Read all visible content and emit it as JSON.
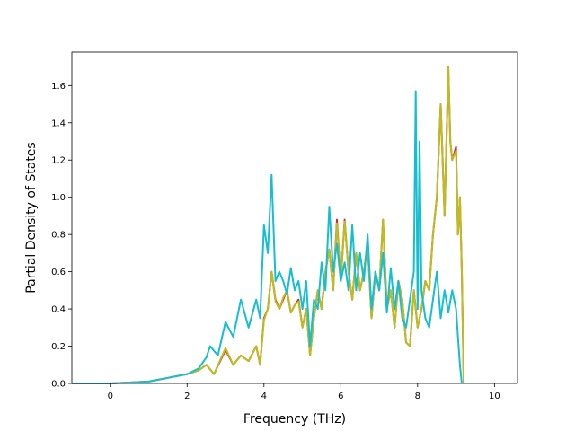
{
  "chart_data": {
    "type": "line",
    "title": "",
    "xlabel": "Frequency (THz)",
    "ylabel": "Partial Density of States",
    "xlim": [
      -1.0,
      10.6
    ],
    "ylim": [
      0.0,
      1.78
    ],
    "xticks": [
      0,
      2,
      4,
      6,
      8,
      10
    ],
    "yticks": [
      0.0,
      0.2,
      0.4,
      0.6,
      0.8,
      1.0,
      1.2,
      1.4,
      1.6
    ],
    "xtick_labels": [
      "0",
      "2",
      "4",
      "6",
      "8",
      "10"
    ],
    "ytick_labels": [
      "0.0",
      "0.2",
      "0.4",
      "0.6",
      "0.8",
      "1.0",
      "1.2",
      "1.4",
      "1.6"
    ],
    "grid": false,
    "legend": "none",
    "series": [
      {
        "color": "#d62728",
        "x": [
          -1.0,
          0.0,
          0.5,
          1.0,
          1.5,
          2.0,
          2.3,
          2.5,
          2.7,
          3.0,
          3.2,
          3.4,
          3.6,
          3.8,
          3.9,
          4.0,
          4.1,
          4.2,
          4.3,
          4.4,
          4.5,
          4.6,
          4.7,
          4.8,
          4.9,
          5.0,
          5.1,
          5.2,
          5.3,
          5.4,
          5.5,
          5.6,
          5.7,
          5.8,
          5.9,
          6.0,
          6.1,
          6.2,
          6.3,
          6.4,
          6.5,
          6.6,
          6.7,
          6.8,
          6.9,
          7.0,
          7.1,
          7.2,
          7.3,
          7.4,
          7.5,
          7.6,
          7.7,
          7.8,
          7.9,
          8.0,
          8.1,
          8.2,
          8.3,
          8.4,
          8.5,
          8.6,
          8.7,
          8.8,
          8.85,
          8.9,
          9.0,
          9.05,
          9.1,
          9.15,
          9.2
        ],
        "y": [
          0.0,
          0.0,
          0.005,
          0.01,
          0.03,
          0.05,
          0.07,
          0.1,
          0.05,
          0.18,
          0.1,
          0.15,
          0.12,
          0.2,
          0.1,
          0.35,
          0.4,
          0.6,
          0.45,
          0.4,
          0.45,
          0.5,
          0.38,
          0.42,
          0.45,
          0.3,
          0.4,
          0.15,
          0.35,
          0.5,
          0.4,
          0.6,
          0.72,
          0.5,
          0.88,
          0.55,
          0.88,
          0.6,
          0.45,
          0.7,
          0.5,
          0.6,
          0.75,
          0.35,
          0.6,
          0.5,
          0.88,
          0.4,
          0.5,
          0.3,
          0.55,
          0.45,
          0.22,
          0.2,
          0.5,
          0.3,
          0.4,
          0.55,
          0.5,
          0.8,
          1.0,
          1.5,
          0.9,
          1.7,
          1.3,
          1.2,
          1.27,
          0.8,
          1.0,
          0.6,
          0.0
        ]
      },
      {
        "color": "#bcbd22",
        "x": [
          -1.0,
          0.0,
          0.5,
          1.0,
          1.5,
          2.0,
          2.3,
          2.5,
          2.7,
          3.0,
          3.2,
          3.4,
          3.6,
          3.8,
          3.9,
          4.0,
          4.1,
          4.2,
          4.3,
          4.4,
          4.5,
          4.6,
          4.7,
          4.8,
          4.9,
          5.0,
          5.1,
          5.2,
          5.3,
          5.4,
          5.5,
          5.6,
          5.7,
          5.8,
          5.9,
          6.0,
          6.1,
          6.2,
          6.3,
          6.4,
          6.5,
          6.6,
          6.7,
          6.8,
          6.9,
          7.0,
          7.1,
          7.2,
          7.3,
          7.4,
          7.5,
          7.6,
          7.7,
          7.8,
          7.9,
          8.0,
          8.1,
          8.2,
          8.3,
          8.4,
          8.5,
          8.6,
          8.7,
          8.8,
          8.85,
          8.9,
          9.0,
          9.05,
          9.1,
          9.15,
          9.2
        ],
        "y": [
          0.0,
          0.0,
          0.005,
          0.01,
          0.03,
          0.05,
          0.07,
          0.1,
          0.05,
          0.19,
          0.1,
          0.15,
          0.12,
          0.2,
          0.1,
          0.34,
          0.4,
          0.6,
          0.44,
          0.4,
          0.46,
          0.5,
          0.38,
          0.42,
          0.44,
          0.3,
          0.4,
          0.15,
          0.35,
          0.5,
          0.4,
          0.6,
          0.72,
          0.5,
          0.86,
          0.55,
          0.87,
          0.6,
          0.45,
          0.7,
          0.5,
          0.6,
          0.75,
          0.35,
          0.6,
          0.5,
          0.88,
          0.4,
          0.5,
          0.3,
          0.55,
          0.45,
          0.22,
          0.2,
          0.5,
          0.3,
          0.4,
          0.55,
          0.5,
          0.8,
          1.0,
          1.5,
          0.9,
          1.7,
          1.3,
          1.2,
          1.25,
          0.8,
          1.0,
          0.6,
          0.0
        ]
      },
      {
        "color": "#17becf",
        "x": [
          -1.0,
          0.0,
          0.5,
          1.0,
          1.5,
          2.0,
          2.3,
          2.5,
          2.6,
          2.8,
          3.0,
          3.2,
          3.4,
          3.6,
          3.8,
          3.9,
          4.0,
          4.1,
          4.2,
          4.3,
          4.4,
          4.5,
          4.6,
          4.7,
          4.8,
          4.9,
          5.0,
          5.1,
          5.2,
          5.3,
          5.4,
          5.5,
          5.6,
          5.7,
          5.8,
          5.9,
          6.0,
          6.1,
          6.2,
          6.3,
          6.4,
          6.5,
          6.6,
          6.7,
          6.8,
          6.9,
          7.0,
          7.1,
          7.2,
          7.3,
          7.4,
          7.5,
          7.6,
          7.7,
          7.8,
          7.9,
          7.95,
          8.0,
          8.05,
          8.1,
          8.2,
          8.3,
          8.4,
          8.5,
          8.6,
          8.7,
          8.8,
          8.9,
          9.0,
          9.05,
          9.1,
          9.15
        ],
        "y": [
          0.0,
          0.0,
          0.005,
          0.01,
          0.03,
          0.05,
          0.08,
          0.14,
          0.2,
          0.15,
          0.33,
          0.25,
          0.45,
          0.3,
          0.45,
          0.35,
          0.85,
          0.7,
          1.12,
          0.55,
          0.6,
          0.55,
          0.48,
          0.62,
          0.5,
          0.55,
          0.4,
          0.55,
          0.2,
          0.45,
          0.4,
          0.65,
          0.5,
          0.95,
          0.6,
          0.75,
          0.55,
          0.65,
          0.5,
          0.85,
          0.5,
          0.7,
          0.55,
          0.8,
          0.4,
          0.6,
          0.5,
          0.7,
          0.38,
          0.62,
          0.4,
          0.55,
          0.35,
          0.3,
          0.45,
          0.6,
          1.57,
          0.4,
          1.3,
          0.5,
          0.35,
          0.3,
          0.45,
          0.6,
          0.35,
          0.5,
          0.38,
          0.5,
          0.4,
          0.25,
          0.1,
          0.0
        ]
      }
    ]
  }
}
